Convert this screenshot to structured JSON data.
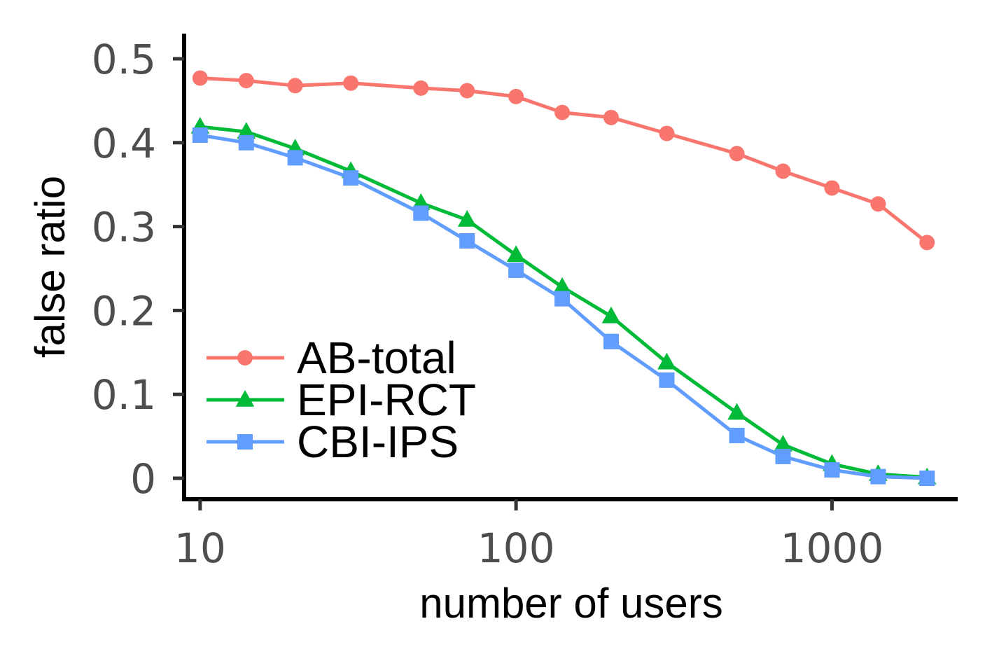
{
  "chart_data": {
    "type": "line",
    "title": "",
    "xlabel": "number of users",
    "ylabel": "false ratio",
    "x_scale": "log",
    "xlim": [
      8.9,
      2500
    ],
    "ylim": [
      -0.025,
      0.53
    ],
    "x_ticks": [
      10,
      100,
      1000
    ],
    "x_tick_labels": [
      "10",
      "100",
      "1000"
    ],
    "y_ticks": [
      0,
      0.1,
      0.2,
      0.3,
      0.4,
      0.5
    ],
    "y_tick_labels": [
      "0",
      "0.1",
      "0.2",
      "0.3",
      "0.4",
      "0.5"
    ],
    "grid": false,
    "legend_position": "bottom-left",
    "x": [
      10,
      14,
      20,
      30,
      50,
      70,
      100,
      140,
      200,
      300,
      500,
      700,
      1000,
      1400,
      2000
    ],
    "series": [
      {
        "name": "AB-total",
        "color": "#F8766D",
        "marker": "circle",
        "values": [
          0.477,
          0.474,
          0.468,
          0.471,
          0.465,
          0.462,
          0.455,
          0.436,
          0.43,
          0.411,
          0.387,
          0.366,
          0.346,
          0.327,
          0.281
        ]
      },
      {
        "name": "EPI-RCT",
        "color": "#00BA38",
        "marker": "triangle",
        "values": [
          0.419,
          0.413,
          0.393,
          0.366,
          0.328,
          0.308,
          0.266,
          0.228,
          0.193,
          0.138,
          0.078,
          0.04,
          0.017,
          0.005,
          0.001
        ]
      },
      {
        "name": "CBI-IPS",
        "color": "#619CFF",
        "marker": "square",
        "values": [
          0.409,
          0.4,
          0.382,
          0.358,
          0.316,
          0.283,
          0.248,
          0.214,
          0.163,
          0.117,
          0.051,
          0.026,
          0.01,
          0.002,
          0.0
        ]
      }
    ]
  }
}
